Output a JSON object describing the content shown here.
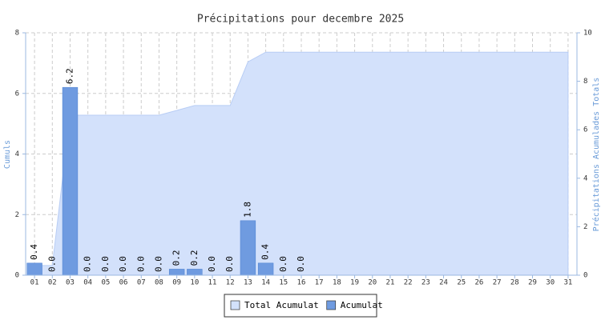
{
  "chart_data": {
    "type": "bar",
    "title": "Précipitations pour decembre 2025",
    "y_label": "Cumuls",
    "y2_label": "Précipitations Acumulades Totals",
    "categories": [
      "01",
      "02",
      "03",
      "04",
      "05",
      "06",
      "07",
      "08",
      "09",
      "10",
      "11",
      "12",
      "13",
      "14",
      "15",
      "16",
      "17",
      "18",
      "19",
      "20",
      "21",
      "22",
      "23",
      "24",
      "25",
      "26",
      "27",
      "28",
      "29",
      "30",
      "31"
    ],
    "ylim": [
      0,
      8
    ],
    "yticks": [
      0,
      2,
      4,
      6,
      8
    ],
    "y2lim": [
      0,
      10
    ],
    "y2ticks": [
      0,
      2,
      4,
      6,
      8,
      10
    ],
    "grid": true,
    "legend": "bottom",
    "series": [
      {
        "name": "Total Acumulat",
        "type": "area",
        "axis": "y2",
        "color": "#d3e1fb",
        "values": [
          0.4,
          0.4,
          6.6,
          6.6,
          6.6,
          6.6,
          6.6,
          6.6,
          6.8,
          7.0,
          7.0,
          7.0,
          8.8,
          9.2,
          9.2,
          9.2,
          9.2,
          9.2,
          9.2,
          9.2,
          9.2,
          9.2,
          9.2,
          9.2,
          9.2,
          9.2,
          9.2,
          9.2,
          9.2,
          9.2,
          9.2
        ]
      },
      {
        "name": "Acumulat",
        "type": "bar",
        "color": "#6f9be0",
        "values": [
          0.4,
          0,
          6.2,
          0,
          0,
          0,
          0,
          0,
          0.2,
          0.2,
          0,
          0,
          1.8,
          0.4,
          0,
          0,
          null,
          null,
          null,
          null,
          null,
          null,
          null,
          null,
          null,
          null,
          null,
          null,
          null,
          null,
          null
        ],
        "value_labels": [
          "0.4",
          "0.0",
          "6.2",
          "0.0",
          "0.0",
          "0.0",
          "0.0",
          "0.0",
          "0.2",
          "0.2",
          "0.0",
          "0.0",
          "1.8",
          "0.4",
          "0.0",
          "0.0",
          null,
          null,
          null,
          null,
          null,
          null,
          null,
          null,
          null,
          null,
          null,
          null,
          null,
          null,
          null
        ]
      }
    ]
  }
}
